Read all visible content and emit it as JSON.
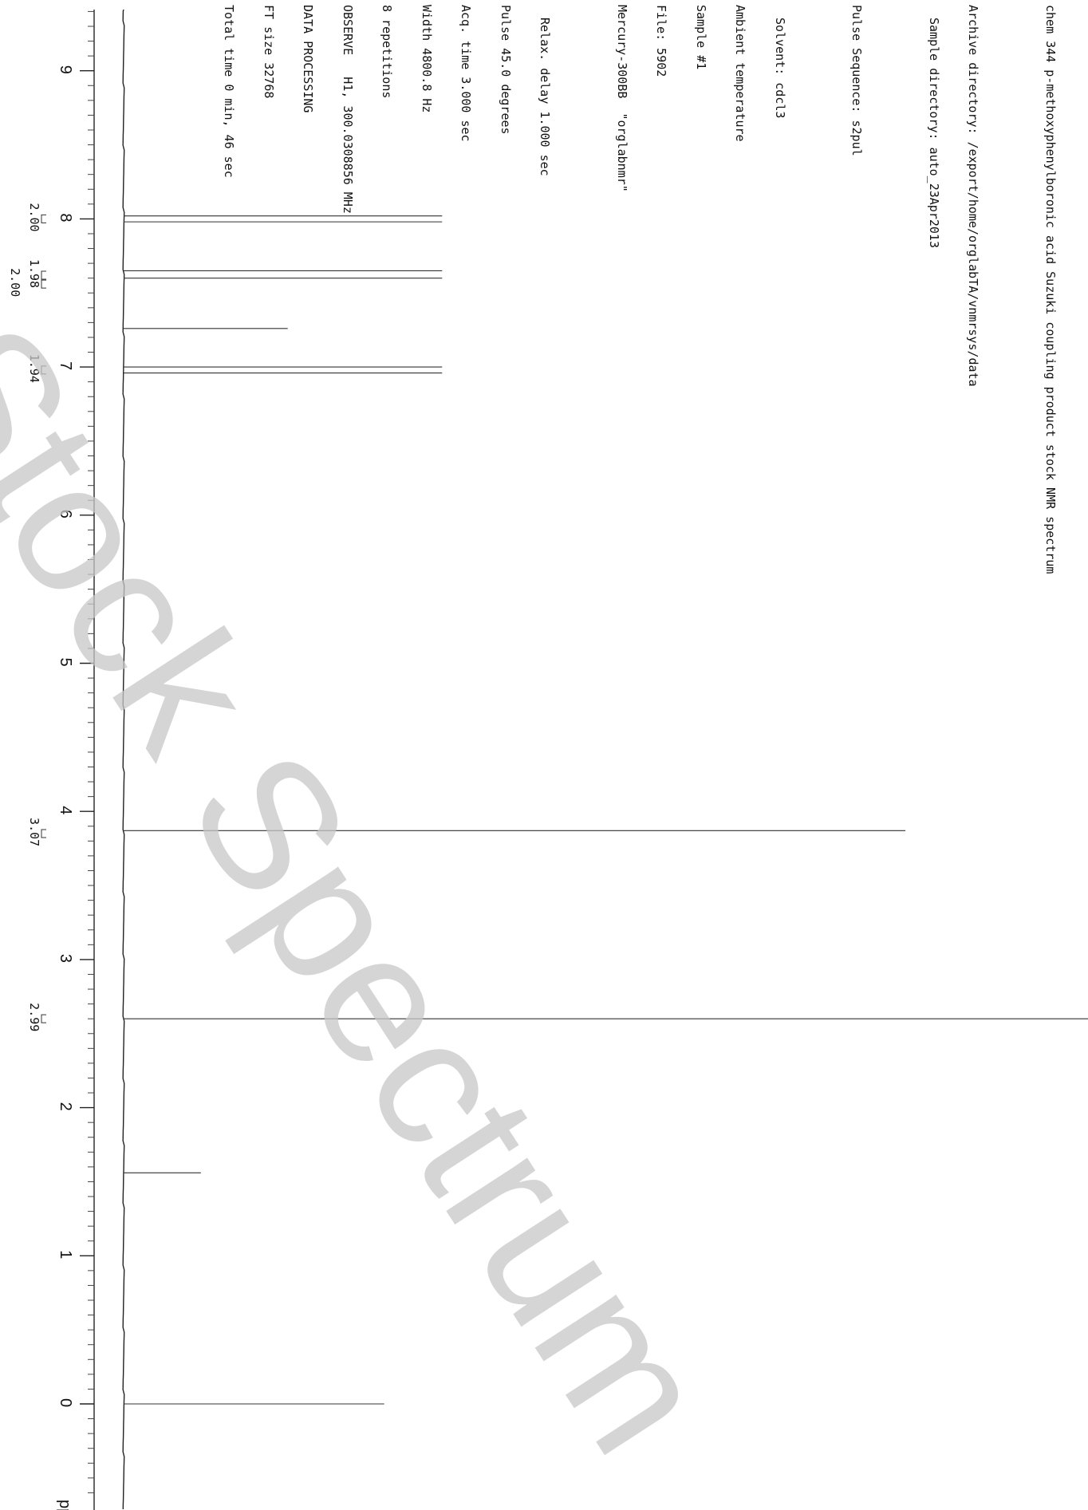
{
  "header": {
    "title_line": "chem 344 p-methoxyphenylboronic acid Suzuki coupling product stock NMR spectrum",
    "archive_dir": "Archive directory: /export/home/orglabTA/vnmrsys/data",
    "sample_dir": "Sample directory: auto_23Apr2013",
    "pulse_sequence": "Pulse Sequence: s2pul",
    "solvent": "Solvent: cdcl3",
    "temperature": "Ambient temperature",
    "sample": "Sample #1",
    "file": "File: 5902",
    "instrument": "Mercury-300BB  \"orglabnmr\"",
    "relax": "Relax. delay 1.000 sec",
    "pulse": "Pulse 45.0 degrees",
    "acq": "Acq. time 3.000 sec",
    "width": "Width 4800.8 Hz",
    "reps": "8 repetitions",
    "observe": "OBSERVE   H1, 300.0308856 MHz",
    "processing": "DATA PROCESSING",
    "ft": "FT size 32768",
    "total": "Total time 0 min, 46 sec"
  },
  "watermark": "Stock Spectrum",
  "chart_data": {
    "type": "line",
    "title": "chem 344 p-methoxyphenylboronic acid Suzuki coupling product stock NMR spectrum",
    "xlabel": "ppm",
    "x_axis_orientation": "vertical, decreasing downward",
    "xlim": [
      9.4,
      -0.7
    ],
    "ticks": [
      {
        "value": 9,
        "label": "9"
      },
      {
        "value": 8,
        "label": "8"
      },
      {
        "value": 7,
        "label": "7"
      },
      {
        "value": 6,
        "label": "6"
      },
      {
        "value": 5,
        "label": "5"
      },
      {
        "value": 4,
        "label": "4"
      },
      {
        "value": 3,
        "label": "3"
      },
      {
        "value": 2,
        "label": "2"
      },
      {
        "value": 1,
        "label": "1"
      },
      {
        "value": 0,
        "label": "0"
      }
    ],
    "peaks": [
      {
        "ppm": 8.02,
        "relative_height": 0.33
      },
      {
        "ppm": 7.98,
        "relative_height": 0.33
      },
      {
        "ppm": 7.65,
        "relative_height": 0.33
      },
      {
        "ppm": 7.6,
        "relative_height": 0.33
      },
      {
        "ppm": 7.26,
        "relative_height": 0.17
      },
      {
        "ppm": 7.0,
        "relative_height": 0.33
      },
      {
        "ppm": 6.96,
        "relative_height": 0.33
      },
      {
        "ppm": 3.87,
        "relative_height": 0.81
      },
      {
        "ppm": 2.6,
        "relative_height": 1.0
      },
      {
        "ppm": 1.56,
        "relative_height": 0.08
      },
      {
        "ppm": 0.0,
        "relative_height": 0.27
      }
    ],
    "integrals": [
      {
        "ppm": 8.0,
        "label": "2.00"
      },
      {
        "ppm": 7.62,
        "label": "1.98"
      },
      {
        "ppm": 7.56,
        "label": "2.00"
      },
      {
        "ppm": 6.98,
        "label": "1.94"
      },
      {
        "ppm": 3.85,
        "label": "3.07"
      },
      {
        "ppm": 2.6,
        "label": "2.99"
      }
    ]
  }
}
